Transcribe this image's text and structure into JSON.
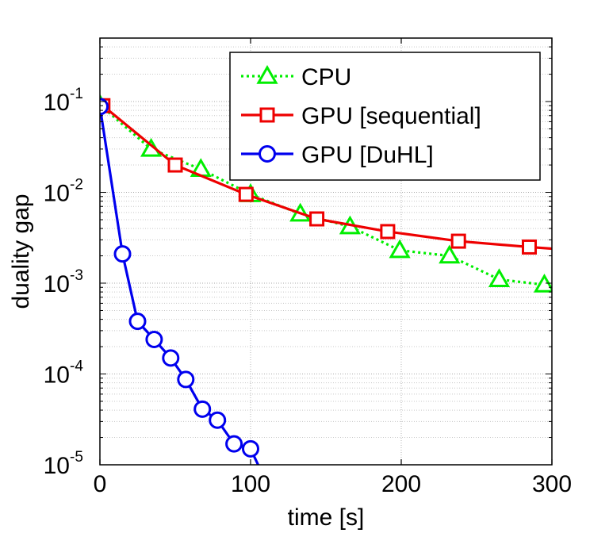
{
  "chart_data": {
    "type": "line",
    "xlabel": "time [s]",
    "ylabel": "duality gap",
    "xlim": [
      0,
      300
    ],
    "ylim": [
      1e-05,
      0.5
    ],
    "yscale": "log",
    "grid": true,
    "legend_position": "top-right",
    "xticks": [
      {
        "value": 0,
        "label": "0"
      },
      {
        "value": 100,
        "label": "100"
      },
      {
        "value": 200,
        "label": "200"
      },
      {
        "value": 300,
        "label": "300"
      }
    ],
    "yticks": [
      {
        "value": 1e-05,
        "base": "10",
        "exp": "-5"
      },
      {
        "value": 0.0001,
        "base": "10",
        "exp": "-4"
      },
      {
        "value": 0.001,
        "base": "10",
        "exp": "-3"
      },
      {
        "value": 0.01,
        "base": "10",
        "exp": "-2"
      },
      {
        "value": 0.1,
        "base": "10",
        "exp": "-1"
      }
    ],
    "series": [
      {
        "name": "CPU",
        "color": "#00ee00",
        "marker": "triangle",
        "dash": "dotted",
        "x": [
          0,
          34,
          67,
          100,
          133,
          166,
          199,
          232,
          265,
          295
        ],
        "y": [
          0.092,
          0.03,
          0.018,
          0.0095,
          0.0058,
          0.0042,
          0.0023,
          0.002,
          0.0011,
          0.00096
        ]
      },
      {
        "name": "GPU [sequential]",
        "color": "#ee0000",
        "marker": "square",
        "dash": "solid",
        "x": [
          2,
          50,
          97,
          144,
          191,
          238,
          285,
          300
        ],
        "y": [
          0.09,
          0.02,
          0.0095,
          0.0051,
          0.0037,
          0.0029,
          0.0025,
          0.0024
        ],
        "marker_count": 7
      },
      {
        "name": "GPU [DuHL]",
        "color": "#0000ee",
        "marker": "circle",
        "dash": "solid",
        "x": [
          0,
          15,
          25,
          36,
          47,
          57,
          68,
          78,
          89,
          100,
          105
        ],
        "y": [
          0.088,
          0.0021,
          0.00038,
          0.00024,
          0.00015,
          8.7e-05,
          4.1e-05,
          3.1e-05,
          1.7e-05,
          1.5e-05,
          1e-05
        ],
        "marker_count": 10
      }
    ]
  }
}
